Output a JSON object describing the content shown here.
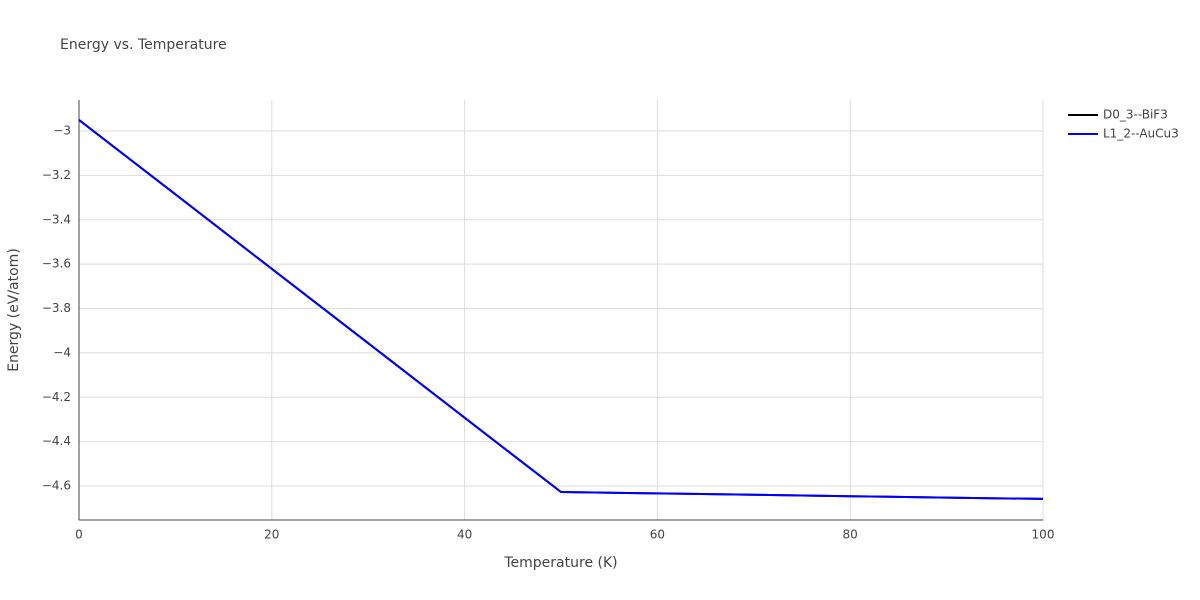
{
  "chart_data": {
    "type": "line",
    "title": "Energy vs. Temperature",
    "xlabel": "Temperature (K)",
    "ylabel": "Energy (eV/atom)",
    "x": [
      0,
      10,
      20,
      30,
      40,
      50,
      60,
      70,
      80,
      90,
      100
    ],
    "series": [
      {
        "name": "D0_3--BiF3",
        "color": "#000000",
        "values": [
          -2.95,
          -3.285,
          -3.621,
          -3.956,
          -4.292,
          -4.627,
          -4.633,
          -4.639,
          -4.646,
          -4.652,
          -4.658
        ]
      },
      {
        "name": "L1_2--AuCu3",
        "color": "#0000ff",
        "values": [
          -2.95,
          -3.285,
          -3.621,
          -3.956,
          -4.292,
          -4.627,
          -4.633,
          -4.639,
          -4.646,
          -4.652,
          -4.658
        ]
      }
    ],
    "xlim": [
      0,
      100
    ],
    "xticks": [
      0,
      20,
      40,
      60,
      80,
      100
    ],
    "ylim": [
      -4.753,
      -2.86
    ],
    "yticks": [
      {
        "value": -3,
        "label": "−3"
      },
      {
        "value": -3.2,
        "label": "−3.2"
      },
      {
        "value": -3.4,
        "label": "−3.4"
      },
      {
        "value": -3.6,
        "label": "−3.6"
      },
      {
        "value": -3.8,
        "label": "−3.8"
      },
      {
        "value": -4,
        "label": "−4"
      },
      {
        "value": -4.2,
        "label": "−4.2"
      },
      {
        "value": -4.4,
        "label": "−4.4"
      },
      {
        "value": -4.6,
        "label": "−4.6"
      }
    ],
    "grid": true,
    "legend": "outside-top-right"
  }
}
